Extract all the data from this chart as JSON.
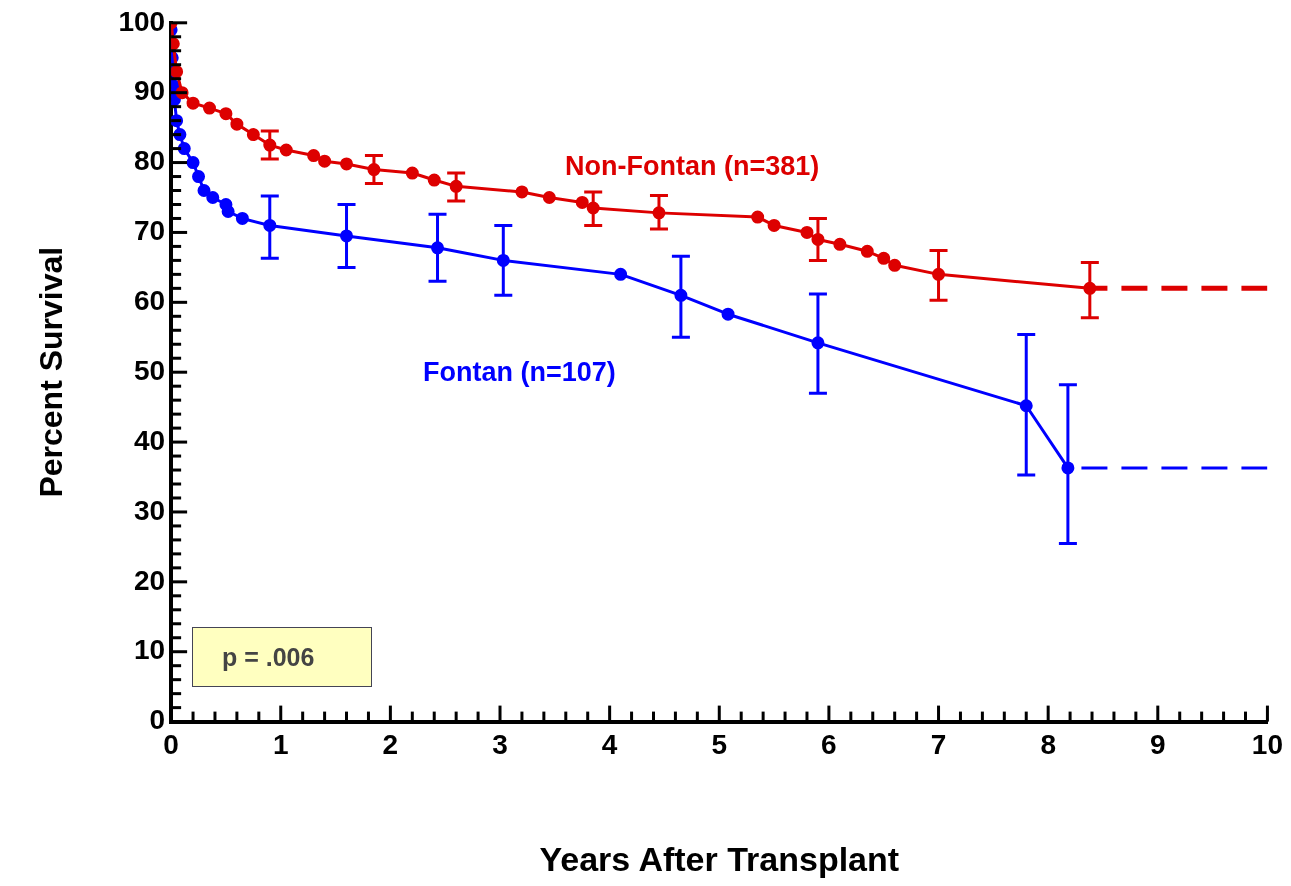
{
  "chart_data": {
    "type": "line",
    "xlabel": "Years After Transplant",
    "ylabel": "Percent Survival",
    "xlim": [
      0,
      10
    ],
    "ylim": [
      0,
      100
    ],
    "xticks": [
      0,
      {
        "value": 0.2,
        "label": null
      },
      {
        "value": 0.4,
        "label": null
      },
      {
        "value": 0.6,
        "label": null
      },
      {
        "value": 0.8,
        "label": null
      },
      1,
      {
        "value": 1.2,
        "label": null
      },
      {
        "value": 1.4,
        "label": null
      },
      {
        "value": 1.6,
        "label": null
      },
      {
        "value": 1.8,
        "label": null
      },
      2,
      {
        "value": 2.2,
        "label": null
      },
      {
        "value": 2.4,
        "label": null
      },
      {
        "value": 2.6,
        "label": null
      },
      {
        "value": 2.8,
        "label": null
      },
      3,
      {
        "value": 3.2,
        "label": null
      },
      {
        "value": 3.4,
        "label": null
      },
      {
        "value": 3.6,
        "label": null
      },
      {
        "value": 3.8,
        "label": null
      },
      4,
      {
        "value": 4.2,
        "label": null
      },
      {
        "value": 4.4,
        "label": null
      },
      {
        "value": 4.6,
        "label": null
      },
      {
        "value": 4.8,
        "label": null
      },
      5,
      {
        "value": 5.2,
        "label": null
      },
      {
        "value": 5.4,
        "label": null
      },
      {
        "value": 5.6,
        "label": null
      },
      {
        "value": 5.8,
        "label": null
      },
      6,
      {
        "value": 6.2,
        "label": null
      },
      {
        "value": 6.4,
        "label": null
      },
      {
        "value": 6.6,
        "label": null
      },
      {
        "value": 6.8,
        "label": null
      },
      7,
      {
        "value": 7.2,
        "label": null
      },
      {
        "value": 7.4,
        "label": null
      },
      {
        "value": 7.6,
        "label": null
      },
      {
        "value": 7.8,
        "label": null
      },
      8,
      {
        "value": 8.2,
        "label": null
      },
      {
        "value": 8.4,
        "label": null
      },
      {
        "value": 8.6,
        "label": null
      },
      {
        "value": 8.8,
        "label": null
      },
      9,
      {
        "value": 9.2,
        "label": null
      },
      {
        "value": 9.4,
        "label": null
      },
      {
        "value": 9.6,
        "label": null
      },
      {
        "value": 9.8,
        "label": null
      },
      10
    ],
    "yticks": [
      0,
      {
        "value": 2,
        "label": null
      },
      {
        "value": 4,
        "label": null
      },
      {
        "value": 6,
        "label": null
      },
      {
        "value": 8,
        "label": null
      },
      10,
      {
        "value": 12,
        "label": null
      },
      {
        "value": 14,
        "label": null
      },
      {
        "value": 16,
        "label": null
      },
      {
        "value": 18,
        "label": null
      },
      20,
      {
        "value": 22,
        "label": null
      },
      {
        "value": 24,
        "label": null
      },
      {
        "value": 26,
        "label": null
      },
      {
        "value": 28,
        "label": null
      },
      30,
      {
        "value": 32,
        "label": null
      },
      {
        "value": 34,
        "label": null
      },
      {
        "value": 36,
        "label": null
      },
      {
        "value": 38,
        "label": null
      },
      40,
      {
        "value": 42,
        "label": null
      },
      {
        "value": 44,
        "label": null
      },
      {
        "value": 46,
        "label": null
      },
      {
        "value": 48,
        "label": null
      },
      50,
      {
        "value": 52,
        "label": null
      },
      {
        "value": 54,
        "label": null
      },
      {
        "value": 56,
        "label": null
      },
      {
        "value": 58,
        "label": null
      },
      60,
      {
        "value": 62,
        "label": null
      },
      {
        "value": 64,
        "label": null
      },
      {
        "value": 66,
        "label": null
      },
      {
        "value": 68,
        "label": null
      },
      70,
      {
        "value": 72,
        "label": null
      },
      {
        "value": 74,
        "label": null
      },
      {
        "value": 76,
        "label": null
      },
      {
        "value": 78,
        "label": null
      },
      80,
      {
        "value": 82,
        "label": null
      },
      {
        "value": 84,
        "label": null
      },
      {
        "value": 86,
        "label": null
      },
      {
        "value": 88,
        "label": null
      },
      90,
      {
        "value": 92,
        "label": null
      },
      {
        "value": 94,
        "label": null
      },
      {
        "value": 96,
        "label": null
      },
      {
        "value": 98,
        "label": null
      },
      100
    ],
    "grid": false,
    "legend": false,
    "marker": "circle",
    "line_style": "solid",
    "annotations": [
      "p = .006"
    ],
    "series": [
      {
        "name": "Non-Fontan (n=381)",
        "color": "#dd0000",
        "x": [
          0,
          0.02,
          0.05,
          0.1,
          0.2,
          0.35,
          0.5,
          0.6,
          0.75,
          0.9,
          1.05,
          1.3,
          1.4,
          1.6,
          1.85,
          2.2,
          2.4,
          2.6,
          3.2,
          3.45,
          3.75,
          3.85,
          4.45,
          5.35,
          5.5,
          5.8,
          5.9,
          6.1,
          6.35,
          6.5,
          6.6,
          7.0,
          8.38
        ],
        "values": [
          100,
          97,
          93,
          90,
          88.5,
          87.8,
          87,
          85.5,
          84,
          82.5,
          81.8,
          81,
          80.2,
          79.8,
          79,
          78.5,
          77.5,
          76.6,
          75.8,
          75,
          74.3,
          73.5,
          72.8,
          72.2,
          71,
          70,
          69,
          68.3,
          67.3,
          66.3,
          65.3,
          64,
          62
        ],
        "errors": [
          null,
          null,
          null,
          null,
          null,
          null,
          null,
          null,
          null,
          [
            80.5,
            84.5
          ],
          null,
          null,
          null,
          null,
          [
            77,
            81
          ],
          null,
          null,
          [
            74.5,
            78.5
          ],
          null,
          null,
          null,
          [
            71,
            75.8
          ],
          [
            70.5,
            75.3
          ],
          null,
          null,
          null,
          [
            66,
            72
          ],
          null,
          null,
          null,
          null,
          [
            60.3,
            67.4
          ],
          [
            57.8,
            65.7
          ]
        ]
      },
      {
        "name": "Fontan (n=107)",
        "color": "#0000ff",
        "x": [
          0,
          0.01,
          0.02,
          0.03,
          0.05,
          0.08,
          0.12,
          0.2,
          0.25,
          0.3,
          0.38,
          0.5,
          0.52,
          0.65,
          0.9,
          1.6,
          2.43,
          3.03,
          4.1,
          4.65,
          5.08,
          5.9,
          7.8,
          8.18
        ],
        "values": [
          99,
          95,
          91,
          89,
          86,
          84,
          82,
          80,
          78,
          76,
          75,
          74,
          73,
          72,
          71,
          69.5,
          67.8,
          66,
          64,
          61,
          58.3,
          54.2,
          45.2,
          36.3
        ],
        "errors": [
          null,
          null,
          null,
          null,
          null,
          null,
          null,
          null,
          null,
          null,
          null,
          null,
          null,
          null,
          [
            66.3,
            75.2
          ],
          [
            65,
            74
          ],
          [
            63,
            72.6
          ],
          [
            61,
            71
          ],
          null,
          [
            55,
            66.6
          ],
          null,
          [
            47,
            61.2
          ],
          [
            35.3,
            55.4
          ],
          [
            25.5,
            48.2
          ]
        ]
      },
      {
        "color": "#dd0000",
        "x": [
          10,
          8.38
        ],
        "values": [
          62,
          62
        ],
        "line_style": "dashed",
        "marker": "none"
      },
      {
        "color": "#0000ff",
        "x": [
          10,
          8.18
        ],
        "values": [
          36.3,
          36.3
        ],
        "line_style": "dashed",
        "marker": "none"
      }
    ]
  }
}
